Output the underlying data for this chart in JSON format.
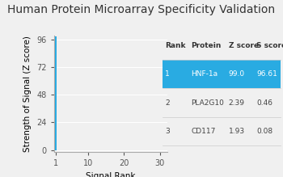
{
  "title": "Human Protein Microarray Specificity Validation",
  "xlabel": "Signal Rank",
  "ylabel": "Strength of Signal (Z score)",
  "bar_x": 1,
  "bar_height": 99.0,
  "bar_color": "#29abe2",
  "yticks": [
    0,
    24,
    48,
    72,
    96
  ],
  "xticks": [
    1,
    10,
    20,
    30
  ],
  "xlim": [
    0.5,
    32
  ],
  "ylim": [
    -2,
    100
  ],
  "table_data": [
    [
      "Rank",
      "Protein",
      "Z score",
      "S score"
    ],
    [
      "1",
      "HNF-1a",
      "99.0",
      "96.61"
    ],
    [
      "2",
      "PLA2G10",
      "2.39",
      "0.46"
    ],
    [
      "3",
      "CD117",
      "1.93",
      "0.08"
    ]
  ],
  "table_highlight_color": "#29abe2",
  "background_color": "#f0f0f0",
  "title_fontsize": 10.0,
  "axis_fontsize": 7.5,
  "tick_fontsize": 7.0,
  "table_fontsize": 6.5
}
